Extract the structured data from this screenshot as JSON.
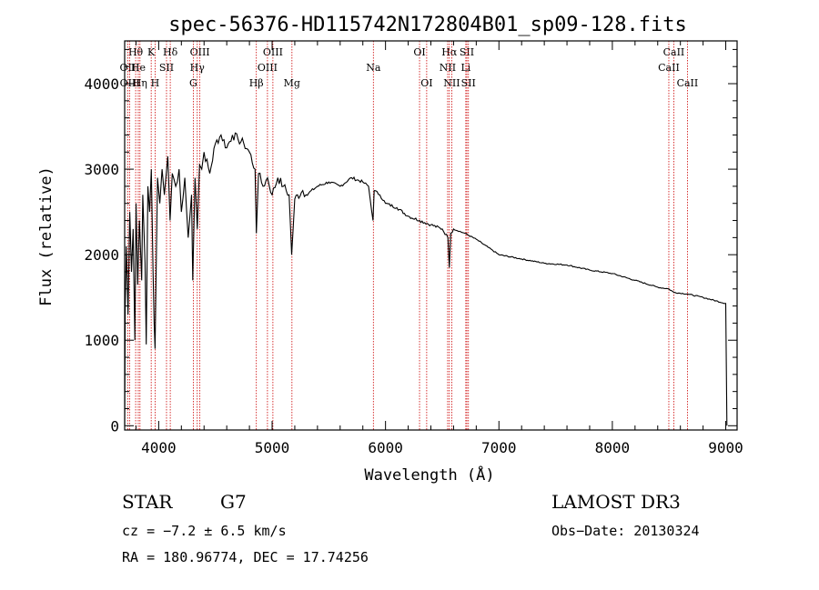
{
  "chart_data": {
    "type": "line",
    "title": "spec-56376-HD115742N172804B01_sp09-128.fits",
    "xlabel": "Wavelength (Å)",
    "ylabel": "Flux (relative)",
    "xlim": [
      3700,
      9100
    ],
    "ylim": [
      -50,
      4500
    ],
    "xticks": [
      4000,
      5000,
      6000,
      7000,
      8000,
      9000
    ],
    "yticks": [
      0,
      1000,
      2000,
      3000,
      4000
    ],
    "series": [
      {
        "name": "flux",
        "x": [
          3700,
          3705,
          3715,
          3730,
          3745,
          3760,
          3775,
          3790,
          3800,
          3815,
          3830,
          3850,
          3860,
          3880,
          3890,
          3905,
          3920,
          3935,
          3950,
          3960,
          3968,
          3975,
          3990,
          4010,
          4030,
          4050,
          4080,
          4100,
          4120,
          4150,
          4180,
          4200,
          4230,
          4260,
          4290,
          4300,
          4320,
          4340,
          4360,
          4380,
          4400,
          4450,
          4500,
          4550,
          4600,
          4650,
          4700,
          4750,
          4800,
          4850,
          4861,
          4880,
          4920,
          4960,
          5000,
          5050,
          5100,
          5150,
          5172,
          5200,
          5270,
          5300,
          5400,
          5500,
          5600,
          5700,
          5800,
          5850,
          5890,
          5900,
          5950,
          6000,
          6100,
          6200,
          6300,
          6400,
          6500,
          6550,
          6563,
          6575,
          6600,
          6700,
          6800,
          7000,
          7200,
          7400,
          7600,
          7800,
          8000,
          8200,
          8400,
          8498,
          8542,
          8662,
          8800,
          9000,
          9010
        ],
        "y": [
          0,
          1400,
          2100,
          1300,
          2500,
          1800,
          2300,
          1000,
          2600,
          1650,
          2400,
          1700,
          2700,
          1900,
          950,
          2800,
          2500,
          3000,
          1800,
          1200,
          900,
          1600,
          2900,
          2600,
          3000,
          2700,
          3150,
          2400,
          2950,
          2800,
          3000,
          2500,
          2900,
          2200,
          2700,
          1700,
          2900,
          2300,
          3050,
          3000,
          3200,
          2950,
          3300,
          3400,
          3250,
          3400,
          3350,
          3300,
          3200,
          3000,
          2250,
          2950,
          2800,
          2900,
          2700,
          2900,
          2800,
          2700,
          2000,
          2650,
          2750,
          2700,
          2800,
          2850,
          2800,
          2900,
          2850,
          2800,
          2400,
          2750,
          2700,
          2600,
          2550,
          2450,
          2400,
          2350,
          2300,
          2200,
          1850,
          2250,
          2300,
          2250,
          2180,
          2000,
          1950,
          1900,
          1880,
          1820,
          1780,
          1700,
          1620,
          1600,
          1560,
          1540,
          1500,
          1430,
          0
        ]
      }
    ],
    "spectral_lines": [
      {
        "label": "Hθ",
        "wave": 3797,
        "row": 1
      },
      {
        "label": "OII",
        "wave": 3727,
        "row": 2
      },
      {
        "label": "OIII",
        "wave": 3745,
        "row": 3
      },
      {
        "label": "He",
        "wave": 3820,
        "row": 2
      },
      {
        "label": "Hη",
        "wave": 3835,
        "row": 3
      },
      {
        "label": "K",
        "wave": 3934,
        "row": 1
      },
      {
        "label": "SII",
        "wave": 4069,
        "row": 2
      },
      {
        "label": "H",
        "wave": 3968,
        "row": 3
      },
      {
        "label": "Hδ",
        "wave": 4102,
        "row": 1
      },
      {
        "label": "OIII",
        "wave": 4363,
        "row": 1
      },
      {
        "label": "Hγ",
        "wave": 4340,
        "row": 2
      },
      {
        "label": "G",
        "wave": 4305,
        "row": 3
      },
      {
        "label": "OIII",
        "wave": 5007,
        "row": 1
      },
      {
        "label": "OIII",
        "wave": 4959,
        "row": 2
      },
      {
        "label": "Hβ",
        "wave": 4861,
        "row": 3
      },
      {
        "label": "Mg",
        "wave": 5175,
        "row": 3
      },
      {
        "label": "Na",
        "wave": 5893,
        "row": 2
      },
      {
        "label": "OI",
        "wave": 6300,
        "row": 1
      },
      {
        "label": "OI",
        "wave": 6363,
        "row": 3
      },
      {
        "label": "Hα",
        "wave": 6563,
        "row": 1
      },
      {
        "label": "SII",
        "wave": 6717,
        "row": 1
      },
      {
        "label": "NII",
        "wave": 6548,
        "row": 2
      },
      {
        "label": "Li",
        "wave": 6708,
        "row": 2
      },
      {
        "label": "NII",
        "wave": 6584,
        "row": 3
      },
      {
        "label": "SII",
        "wave": 6731,
        "row": 3
      },
      {
        "label": "CaII",
        "wave": 8542,
        "row": 1
      },
      {
        "label": "CaII",
        "wave": 8498,
        "row": 2
      },
      {
        "label": "CaII",
        "wave": 8662,
        "row": 3
      }
    ],
    "line_color": "#cc0000"
  },
  "info": {
    "class": "STAR",
    "subclass": "G7",
    "survey": "LAMOST DR3",
    "cz": "cz = −7.2 ± 6.5 km/s",
    "obsdate": "Obs−Date: 20130324",
    "radec": "RA = 180.96774, DEC =  17.74256"
  }
}
